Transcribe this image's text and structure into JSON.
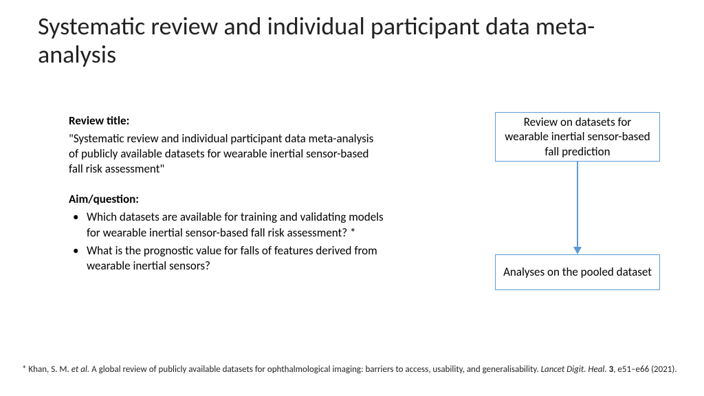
{
  "title": "Systematic review and individual participant data meta-analysis",
  "left": {
    "review_label": "Review title:",
    "review_text": "\"Systematic review and individual participant data meta-analysis of publicly available datasets for wearable inertial sensor-based fall risk assessment\"",
    "aim_label": "Aim/question:",
    "bullets": [
      "Which datasets are available for training and validating models for wearable inertial sensor-based fall risk assessment? *",
      "What is the prognostic value for falls of features derived from wearable inertial sensors?"
    ]
  },
  "flow": {
    "top": "Review on datasets for wearable inertial sensor-based fall prediction",
    "bottom": "Analyses on the pooled dataset",
    "box_border_color": "#5b9bd5",
    "arrow_color": "#5b9bd5"
  },
  "footnote": {
    "star": "* Khan, S. M. ",
    "etal": "et al.",
    "mid": " A global review of publicly available datasets for ophthalmological imaging: barriers to access, usability, and generalisability. ",
    "journal": "Lancet Digit. Heal.",
    "vol": " 3",
    "tail": ", e51–e66 (2021)."
  },
  "style": {
    "bg": "#ffffff",
    "text_color": "#000000",
    "title_fontsize": 36,
    "body_fontsize": 17,
    "footnote_fontsize": 13
  }
}
